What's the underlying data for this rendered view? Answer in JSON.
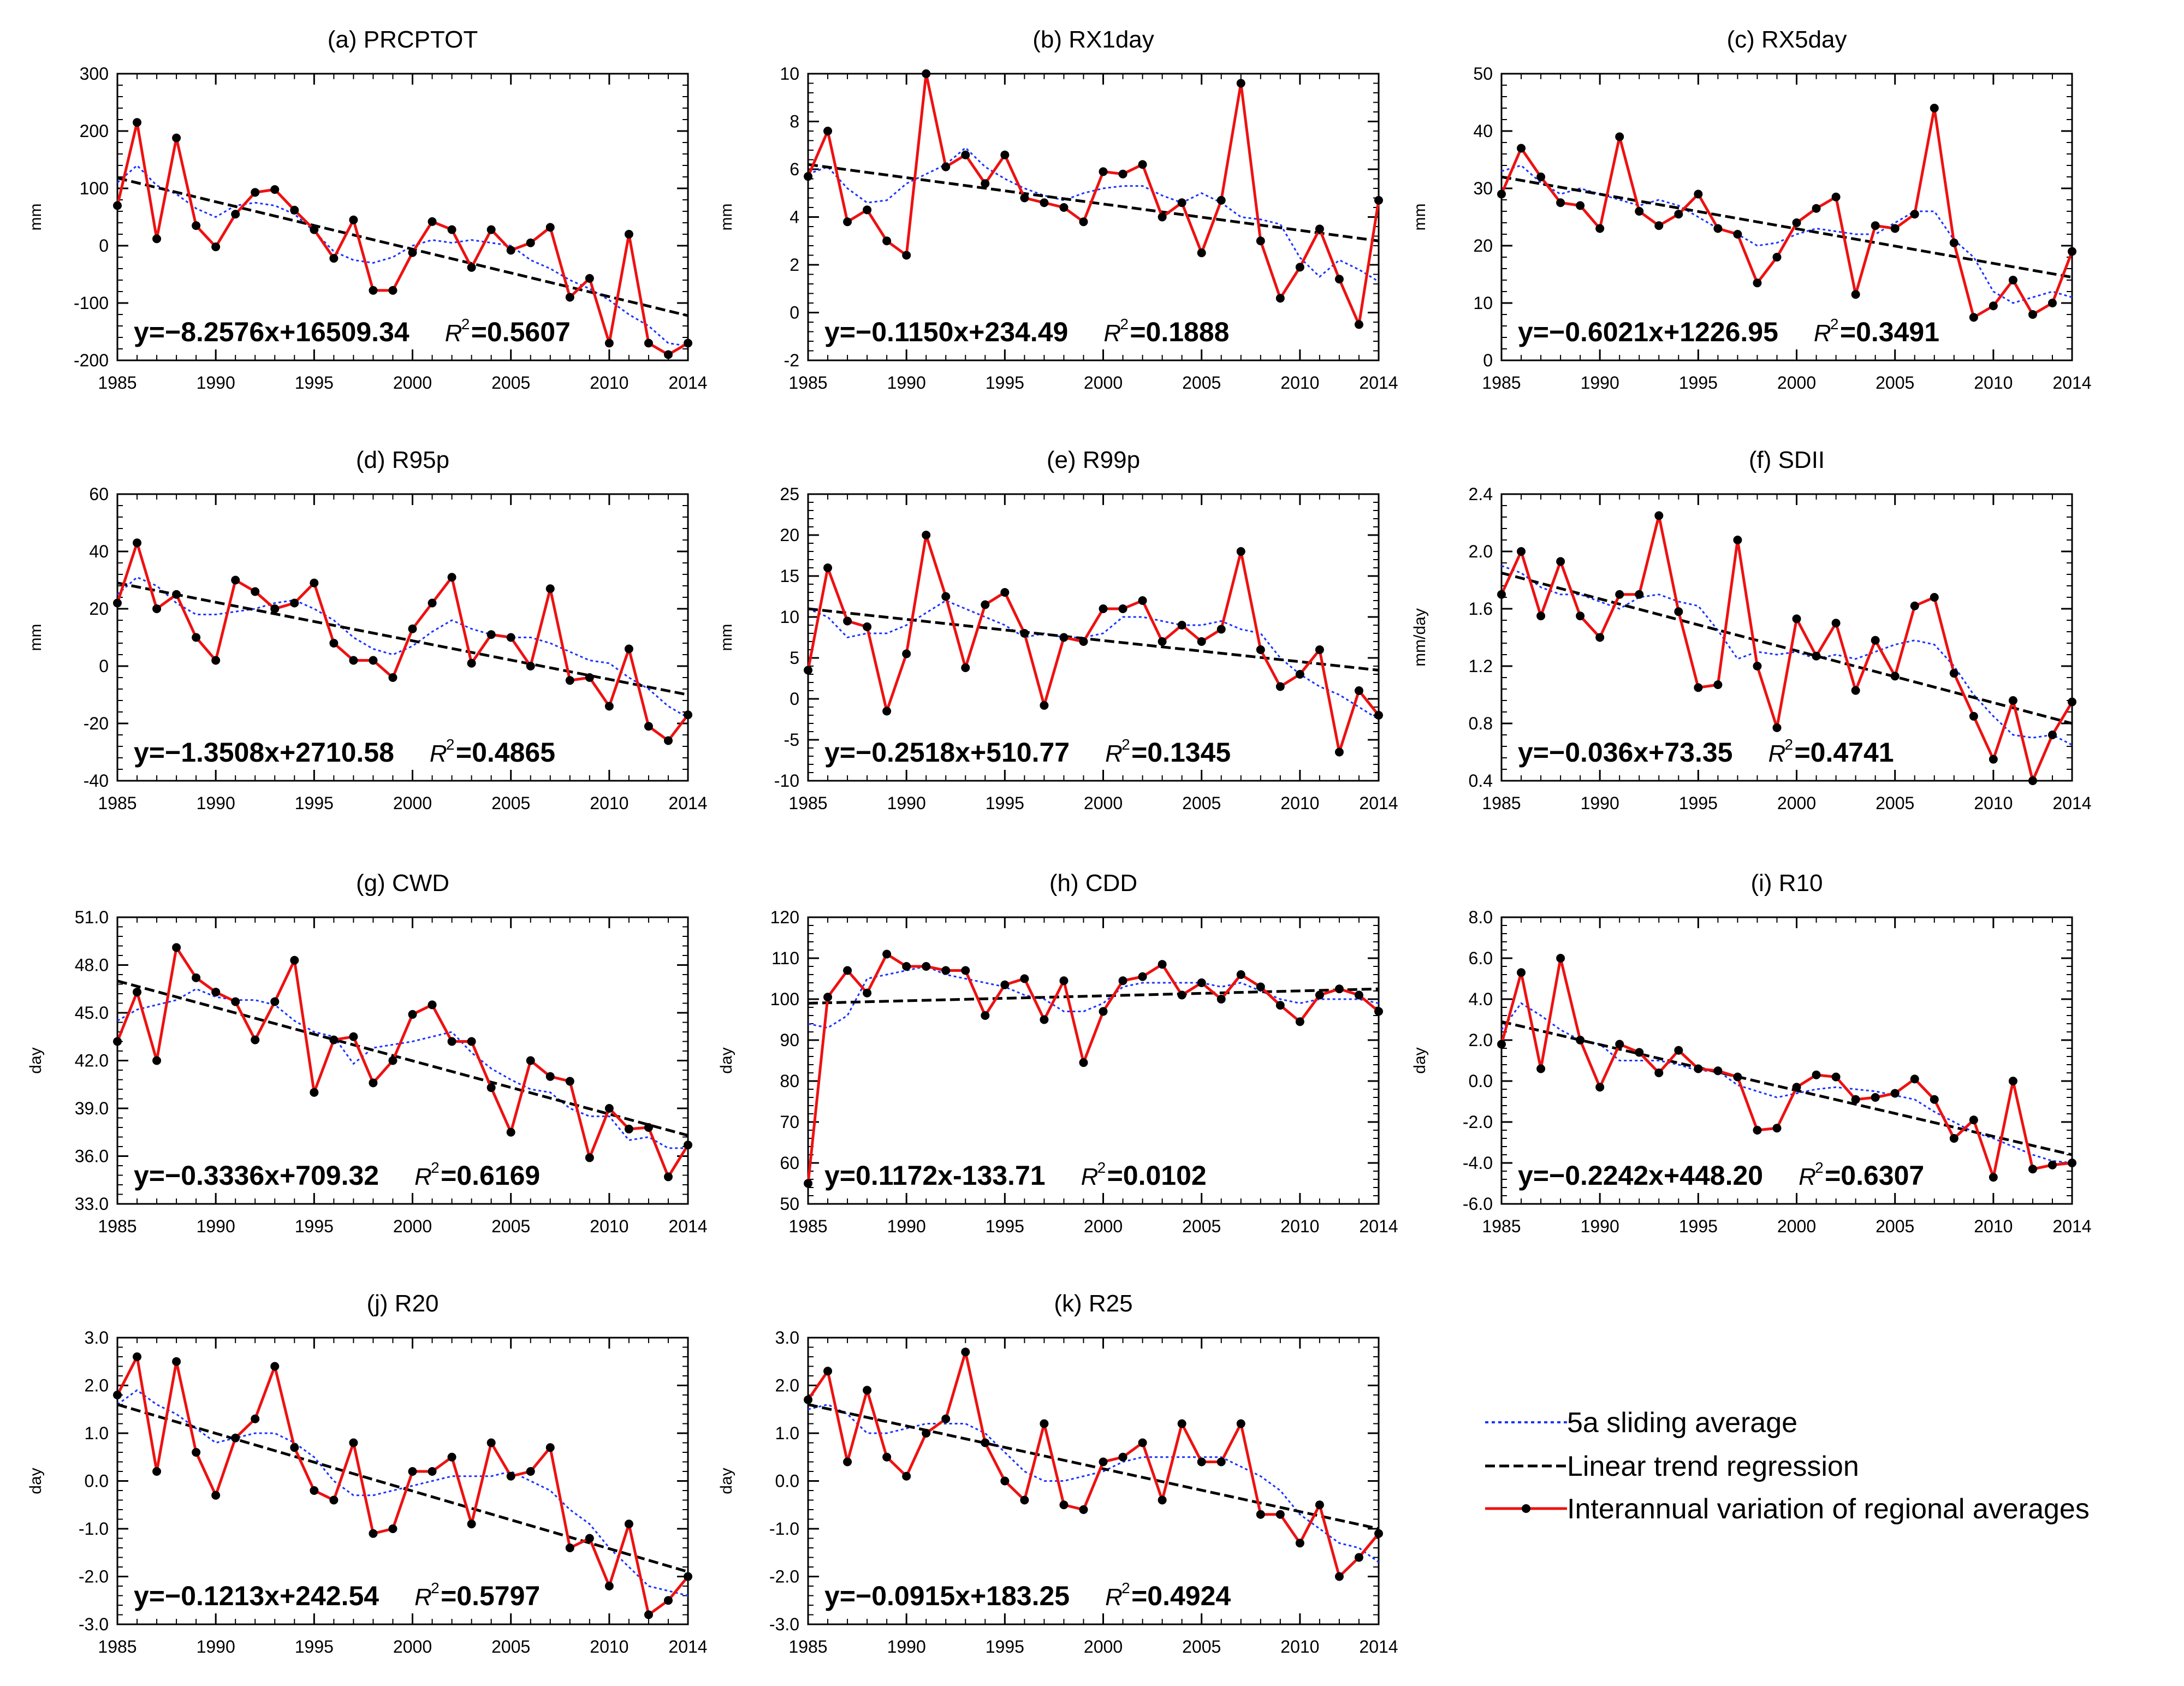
{
  "figure": {
    "legend": {
      "sliding": "5a sliding average",
      "trend": "Linear trend regression",
      "series": "Interannual variation of regional averages"
    },
    "colors": {
      "series": "#ee1111",
      "sliding": "#1a33ff",
      "trend": "#000000"
    }
  },
  "chart_data": [
    {
      "type": "line",
      "title": "(a) PRCPTOT",
      "ylabel": "mm",
      "x": [
        1985,
        1986,
        1987,
        1988,
        1989,
        1990,
        1991,
        1992,
        1993,
        1994,
        1995,
        1996,
        1997,
        1998,
        1999,
        2000,
        2001,
        2002,
        2003,
        2004,
        2005,
        2006,
        2007,
        2008,
        2009,
        2010,
        2011,
        2012,
        2013,
        2014
      ],
      "values": [
        70,
        215,
        12,
        188,
        35,
        -2,
        55,
        93,
        98,
        62,
        28,
        -22,
        45,
        -78,
        -78,
        -12,
        42,
        28,
        -38,
        28,
        -8,
        5,
        32,
        -90,
        -57,
        -170,
        20,
        -170,
        -190,
        -170
      ],
      "sliding": [
        110,
        140,
        105,
        90,
        65,
        50,
        70,
        75,
        70,
        55,
        25,
        -10,
        -25,
        -30,
        -20,
        0,
        10,
        5,
        10,
        5,
        0,
        -25,
        -40,
        -60,
        -75,
        -95,
        -120,
        -140,
        -170,
        -175
      ],
      "trend": [
        118,
        -122
      ],
      "ylim": [
        -200,
        300
      ],
      "yticks": [
        "-200",
        "-100",
        "0",
        "100",
        "200",
        "300"
      ],
      "xticks": [
        "1985",
        "1990",
        "1995",
        "2000",
        "2005",
        "2010",
        "2014"
      ],
      "equation": "y=−8.2576x+16509.34",
      "r2": "=0.5607"
    },
    {
      "type": "line",
      "title": "(b) RX1day",
      "ylabel": "mm",
      "x": [
        1985,
        1986,
        1987,
        1988,
        1989,
        1990,
        1991,
        1992,
        1993,
        1994,
        1995,
        1996,
        1997,
        1998,
        1999,
        2000,
        2001,
        2002,
        2003,
        2004,
        2005,
        2006,
        2007,
        2008,
        2009,
        2010,
        2011,
        2012,
        2013,
        2014
      ],
      "values": [
        5.7,
        7.6,
        3.8,
        4.3,
        3.0,
        2.4,
        10.0,
        6.1,
        6.6,
        5.4,
        6.6,
        4.8,
        4.6,
        4.4,
        3.8,
        5.9,
        5.8,
        6.2,
        4.0,
        4.6,
        2.5,
        4.7,
        9.6,
        3.0,
        0.6,
        1.9,
        3.5,
        1.4,
        -0.5,
        4.7
      ],
      "sliding": [
        5.8,
        6.1,
        5.2,
        4.6,
        4.7,
        5.4,
        5.8,
        6.2,
        6.9,
        6.1,
        5.6,
        5.2,
        4.9,
        4.7,
        5.0,
        5.2,
        5.3,
        5.3,
        4.9,
        4.6,
        5.0,
        4.6,
        4.0,
        3.9,
        3.7,
        2.3,
        1.5,
        2.2,
        1.8,
        1.3
      ],
      "trend": [
        6.2,
        3.0
      ],
      "ylim": [
        -2,
        10
      ],
      "yticks": [
        "-2",
        "0",
        "2",
        "4",
        "6",
        "8",
        "10"
      ],
      "xticks": [
        "1985",
        "1990",
        "1995",
        "2000",
        "2005",
        "2010",
        "2014"
      ],
      "equation": "y=−0.1150x+234.49",
      "r2": "=0.1888"
    },
    {
      "type": "line",
      "title": "(c) RX5day",
      "ylabel": "mm",
      "x": [
        1985,
        1986,
        1987,
        1988,
        1989,
        1990,
        1991,
        1992,
        1993,
        1994,
        1995,
        1996,
        1997,
        1998,
        1999,
        2000,
        2001,
        2002,
        2003,
        2004,
        2005,
        2006,
        2007,
        2008,
        2009,
        2010,
        2011,
        2012,
        2013,
        2014
      ],
      "values": [
        29,
        37,
        32,
        27.5,
        27,
        23,
        39,
        26,
        23.5,
        25.5,
        29,
        23,
        22,
        13.5,
        18,
        24,
        26.5,
        28.5,
        11.5,
        23.5,
        23,
        25.5,
        44,
        20.5,
        7.5,
        9.5,
        14,
        8,
        10,
        19
      ],
      "sliding": [
        33,
        34,
        31,
        29,
        30,
        29,
        28,
        27,
        28,
        27,
        25,
        23,
        22,
        20,
        20.5,
        22,
        23,
        22.5,
        22,
        22,
        24,
        26,
        26,
        21,
        18,
        12,
        10,
        11,
        12,
        11
      ],
      "trend": [
        32,
        14.5
      ],
      "ylim": [
        0,
        50
      ],
      "yticks": [
        "0",
        "10",
        "20",
        "30",
        "40",
        "50"
      ],
      "xticks": [
        "1985",
        "1990",
        "1995",
        "2000",
        "2005",
        "2010",
        "2014"
      ],
      "equation": "y=−0.6021x+1226.95",
      "r2": "=0.3491"
    },
    {
      "type": "line",
      "title": "(d) R95p",
      "ylabel": "mm",
      "x": [
        1985,
        1986,
        1987,
        1988,
        1989,
        1990,
        1991,
        1992,
        1993,
        1994,
        1995,
        1996,
        1997,
        1998,
        1999,
        2000,
        2001,
        2002,
        2003,
        2004,
        2005,
        2006,
        2007,
        2008,
        2009,
        2010,
        2011,
        2012,
        2013,
        2014
      ],
      "values": [
        22,
        43,
        20,
        25,
        10,
        2,
        30,
        26,
        20,
        22,
        29,
        8,
        2,
        2,
        -4,
        13,
        22,
        31,
        1,
        11,
        10,
        0,
        27,
        -5,
        -4,
        -14,
        6,
        -21,
        -26,
        -17
      ],
      "sliding": [
        25,
        31,
        28,
        22,
        18,
        18,
        19,
        20,
        22,
        23,
        20,
        16,
        10,
        6,
        4,
        7,
        12,
        16,
        13,
        11,
        10,
        10,
        8,
        5,
        2,
        1,
        -4,
        -8,
        -14,
        -18
      ],
      "trend": [
        29,
        -10
      ],
      "ylim": [
        -40,
        60
      ],
      "yticks": [
        "-40",
        "-20",
        "0",
        "20",
        "40",
        "60"
      ],
      "xticks": [
        "1985",
        "1990",
        "1995",
        "2000",
        "2005",
        "2010",
        "2014"
      ],
      "equation": "y=−1.3508x+2710.58",
      "r2": "=0.4865"
    },
    {
      "type": "line",
      "title": "(e) R99p",
      "ylabel": "mm",
      "x": [
        1985,
        1986,
        1987,
        1988,
        1989,
        1990,
        1991,
        1992,
        1993,
        1994,
        1995,
        1996,
        1997,
        1998,
        1999,
        2000,
        2001,
        2002,
        2003,
        2004,
        2005,
        2006,
        2007,
        2008,
        2009,
        2010,
        2011,
        2012,
        2013,
        2014
      ],
      "values": [
        3.5,
        16,
        9.5,
        8.8,
        -1.5,
        5.5,
        20,
        12.5,
        3.8,
        11.5,
        13,
        8,
        -0.8,
        7.5,
        7,
        11,
        11,
        12,
        7,
        9,
        7,
        8.5,
        18,
        6,
        1.5,
        3,
        6,
        -6.5,
        1,
        -2
      ],
      "sliding": [
        11,
        10,
        7.5,
        8,
        8,
        9,
        10.5,
        12,
        11,
        10,
        9,
        7.5,
        8,
        7.5,
        7.5,
        8,
        10,
        10,
        9.5,
        9,
        9,
        9.5,
        8.5,
        8,
        5,
        3,
        1.5,
        0.5,
        -1,
        -2.5
      ],
      "trend": [
        11,
        3.5
      ],
      "ylim": [
        -10,
        25
      ],
      "yticks": [
        "-10",
        "-5",
        "0",
        "5",
        "10",
        "15",
        "20",
        "25"
      ],
      "xticks": [
        "1985",
        "1990",
        "1995",
        "2000",
        "2005",
        "2010",
        "2014"
      ],
      "equation": "y=−0.2518x+510.77",
      "r2": "=0.1345"
    },
    {
      "type": "line",
      "title": "(f) SDII",
      "ylabel": "mm/day",
      "x": [
        1985,
        1986,
        1987,
        1988,
        1989,
        1990,
        1991,
        1992,
        1993,
        1994,
        1995,
        1996,
        1997,
        1998,
        1999,
        2000,
        2001,
        2002,
        2003,
        2004,
        2005,
        2006,
        2007,
        2008,
        2009,
        2010,
        2011,
        2012,
        2013,
        2014
      ],
      "values": [
        1.7,
        2.0,
        1.55,
        1.93,
        1.55,
        1.4,
        1.7,
        1.7,
        2.25,
        1.58,
        1.05,
        1.07,
        2.08,
        1.2,
        0.77,
        1.53,
        1.27,
        1.5,
        1.03,
        1.38,
        1.13,
        1.62,
        1.68,
        1.15,
        0.85,
        0.55,
        0.96,
        0.4,
        0.72,
        0.95
      ],
      "sliding": [
        1.9,
        1.85,
        1.75,
        1.7,
        1.7,
        1.65,
        1.6,
        1.68,
        1.7,
        1.65,
        1.62,
        1.45,
        1.25,
        1.3,
        1.28,
        1.3,
        1.25,
        1.28,
        1.25,
        1.3,
        1.35,
        1.38,
        1.35,
        1.2,
        1.0,
        0.85,
        0.72,
        0.7,
        0.72,
        0.65
      ],
      "trend": [
        1.85,
        0.8
      ],
      "ylim": [
        0.4,
        2.4
      ],
      "yticks": [
        "0.4",
        "0.8",
        "1.2",
        "1.6",
        "2.0",
        "2.4"
      ],
      "xticks": [
        "1985",
        "1990",
        "1995",
        "2000",
        "2005",
        "2010",
        "2014"
      ],
      "equation": "y=−0.036x+73.35",
      "r2": "=0.4741"
    },
    {
      "type": "line",
      "title": "(g) CWD",
      "ylabel": "day",
      "x": [
        1985,
        1986,
        1987,
        1988,
        1989,
        1990,
        1991,
        1992,
        1993,
        1994,
        1995,
        1996,
        1997,
        1998,
        1999,
        2000,
        2001,
        2002,
        2003,
        2004,
        2005,
        2006,
        2007,
        2008,
        2009,
        2010,
        2011,
        2012,
        2013,
        2014
      ],
      "values": [
        43.2,
        46.3,
        42.0,
        49.1,
        47.2,
        46.3,
        45.7,
        43.3,
        45.7,
        48.3,
        40.0,
        43.3,
        43.5,
        40.6,
        42.0,
        44.9,
        45.5,
        43.2,
        43.2,
        40.3,
        37.5,
        42.0,
        41.0,
        40.7,
        35.9,
        39.0,
        37.7,
        37.8,
        34.7,
        36.7
      ],
      "sliding": [
        44.5,
        45.2,
        45.5,
        45.8,
        46.5,
        46.0,
        45.8,
        45.8,
        45.5,
        44.5,
        43.8,
        43.5,
        41.8,
        42.8,
        43.0,
        43.2,
        43.5,
        43.8,
        42.5,
        41.5,
        40.8,
        40.2,
        40.0,
        39.0,
        38.5,
        38.5,
        37.0,
        37.2,
        36.5,
        36.5
      ],
      "trend": [
        47.0,
        37.3
      ],
      "ylim": [
        33,
        51
      ],
      "yticks": [
        "33.0",
        "36.0",
        "39.0",
        "42.0",
        "45.0",
        "48.0",
        "51.0"
      ],
      "xticks": [
        "1985",
        "1990",
        "1995",
        "2000",
        "2005",
        "2010",
        "2014"
      ],
      "equation": "y=−0.3336x+709.32",
      "r2": "=0.6169"
    },
    {
      "type": "line",
      "title": "(h) CDD",
      "ylabel": "day",
      "x": [
        1985,
        1986,
        1987,
        1988,
        1989,
        1990,
        1991,
        1992,
        1993,
        1994,
        1995,
        1996,
        1997,
        1998,
        1999,
        2000,
        2001,
        2002,
        2003,
        2004,
        2005,
        2006,
        2007,
        2008,
        2009,
        2010,
        2011,
        2012,
        2013,
        2014
      ],
      "values": [
        55,
        100.5,
        107,
        101.5,
        111,
        108,
        108,
        107,
        107,
        96,
        103.5,
        105,
        95,
        104.5,
        84.5,
        97,
        104.5,
        105.5,
        108.5,
        101,
        104,
        100,
        106,
        103,
        98.5,
        94.5,
        101,
        102.5,
        101,
        97
      ],
      "sliding": [
        94,
        93,
        96,
        105,
        106,
        107,
        108,
        106,
        105,
        104,
        103,
        101,
        100,
        97,
        97,
        99,
        103,
        104,
        104,
        104,
        104,
        103,
        104,
        102,
        100,
        99,
        100,
        100,
        100,
        99
      ],
      "trend": [
        99,
        102.5
      ],
      "ylim": [
        50,
        120
      ],
      "yticks": [
        "50",
        "60",
        "70",
        "80",
        "90",
        "100",
        "110",
        "120"
      ],
      "xticks": [
        "1985",
        "1990",
        "1995",
        "2000",
        "2005",
        "2010",
        "2014"
      ],
      "equation": "y=0.1172x-133.71",
      "r2": "=0.0102"
    },
    {
      "type": "line",
      "title": "(i) R10",
      "ylabel": "day",
      "x": [
        1985,
        1986,
        1987,
        1988,
        1989,
        1990,
        1991,
        1992,
        1993,
        1994,
        1995,
        1996,
        1997,
        1998,
        1999,
        2000,
        2001,
        2002,
        2003,
        2004,
        2005,
        2006,
        2007,
        2008,
        2009,
        2010,
        2011,
        2012,
        2013,
        2014
      ],
      "values": [
        1.8,
        5.3,
        0.6,
        6.0,
        2.0,
        -0.3,
        1.8,
        1.4,
        0.4,
        1.5,
        0.6,
        0.5,
        0.2,
        -2.4,
        -2.3,
        -0.3,
        0.3,
        0.2,
        -0.9,
        -0.8,
        -0.6,
        0.1,
        -0.9,
        -2.8,
        -1.9,
        -4.7,
        0.0,
        -4.3,
        -4.1,
        -4.0
      ],
      "sliding": [
        2.5,
        3.8,
        3.2,
        2.5,
        2.0,
        1.8,
        1.0,
        1.0,
        1.0,
        0.8,
        0.5,
        0.5,
        -0.2,
        -0.5,
        -0.8,
        -0.6,
        -0.4,
        -0.3,
        -0.4,
        -0.5,
        -0.7,
        -0.9,
        -1.5,
        -2.0,
        -2.5,
        -2.8,
        -3.2,
        -3.6,
        -3.9,
        -4.0
      ],
      "trend": [
        2.9,
        -3.6
      ],
      "ylim": [
        -6,
        8
      ],
      "yticks": [
        "-6.0",
        "-4.0",
        "-2.0",
        "0.0",
        "2.0",
        "4.0",
        "6.0",
        "8.0"
      ],
      "xticks": [
        "1985",
        "1990",
        "1995",
        "2000",
        "2005",
        "2010",
        "2014"
      ],
      "equation": "y=−0.2242x+448.20",
      "r2": "=0.6307"
    },
    {
      "type": "line",
      "title": "(j) R20",
      "ylabel": "day",
      "x": [
        1985,
        1986,
        1987,
        1988,
        1989,
        1990,
        1991,
        1992,
        1993,
        1994,
        1995,
        1996,
        1997,
        1998,
        1999,
        2000,
        2001,
        2002,
        2003,
        2004,
        2005,
        2006,
        2007,
        2008,
        2009,
        2010,
        2011,
        2012,
        2013,
        2014
      ],
      "values": [
        1.8,
        2.6,
        0.2,
        2.5,
        0.6,
        -0.3,
        0.9,
        1.3,
        2.4,
        0.7,
        -0.2,
        -0.4,
        0.8,
        -1.1,
        -1.0,
        0.2,
        0.2,
        0.5,
        -0.9,
        0.8,
        0.1,
        0.2,
        0.7,
        -1.4,
        -1.2,
        -2.2,
        -0.9,
        -2.8,
        -2.5,
        -2.0
      ],
      "sliding": [
        1.6,
        1.9,
        1.6,
        1.4,
        1.1,
        0.8,
        0.9,
        1.0,
        1.0,
        0.8,
        0.5,
        0.0,
        -0.3,
        -0.3,
        -0.2,
        -0.1,
        0.0,
        0.1,
        0.1,
        0.1,
        0.2,
        0.0,
        -0.2,
        -0.6,
        -0.9,
        -1.4,
        -1.8,
        -2.2,
        -2.3,
        -2.4
      ],
      "trend": [
        1.6,
        -1.9
      ],
      "ylim": [
        -3,
        3
      ],
      "yticks": [
        "-3.0",
        "-2.0",
        "-1.0",
        "0.0",
        "1.0",
        "2.0",
        "3.0"
      ],
      "xticks": [
        "1985",
        "1990",
        "1995",
        "2000",
        "2005",
        "2010",
        "2014"
      ],
      "equation": "y=−0.1213x+242.54",
      "r2": "=0.5797"
    },
    {
      "type": "line",
      "title": "(k) R25",
      "ylabel": "day",
      "x": [
        1985,
        1986,
        1987,
        1988,
        1989,
        1990,
        1991,
        1992,
        1993,
        1994,
        1995,
        1996,
        1997,
        1998,
        1999,
        2000,
        2001,
        2002,
        2003,
        2004,
        2005,
        2006,
        2007,
        2008,
        2009,
        2010,
        2011,
        2012,
        2013,
        2014
      ],
      "values": [
        1.7,
        2.3,
        0.4,
        1.9,
        0.5,
        0.1,
        1.0,
        1.3,
        2.7,
        0.8,
        0.0,
        -0.4,
        1.2,
        -0.5,
        -0.6,
        0.4,
        0.5,
        0.8,
        -0.4,
        1.2,
        0.4,
        0.4,
        1.2,
        -0.7,
        -0.7,
        -1.3,
        -0.5,
        -2.0,
        -1.6,
        -1.1
      ],
      "sliding": [
        1.5,
        1.6,
        1.4,
        1.0,
        1.0,
        1.1,
        1.2,
        1.2,
        1.2,
        1.0,
        0.6,
        0.2,
        0.0,
        0.0,
        0.1,
        0.2,
        0.4,
        0.5,
        0.5,
        0.5,
        0.5,
        0.5,
        0.3,
        0.1,
        -0.2,
        -0.7,
        -1.0,
        -1.3,
        -1.4,
        -1.7
      ],
      "trend": [
        1.6,
        -1.0
      ],
      "ylim": [
        -3,
        3
      ],
      "yticks": [
        "-3.0",
        "-2.0",
        "-1.0",
        "0.0",
        "1.0",
        "2.0",
        "3.0"
      ],
      "xticks": [
        "1985",
        "1990",
        "1995",
        "2000",
        "2005",
        "2010",
        "2014"
      ],
      "equation": "y=−0.0915x+183.25",
      "r2": "=0.4924"
    }
  ]
}
